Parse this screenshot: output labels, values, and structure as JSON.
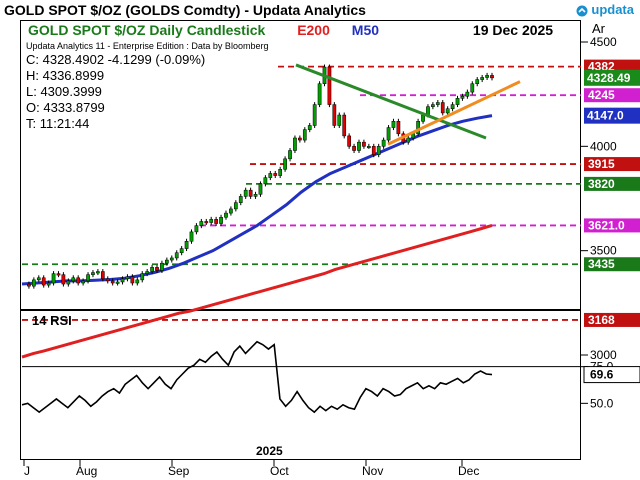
{
  "window": {
    "title": "GOLD SPOT $/OZ (GOLDS Comdty) -   Updata Analytics",
    "brand": "updata"
  },
  "chart_header": {
    "subtitle": "GOLD SPOT $/OZ Daily Candlestick",
    "ema_label": "E200",
    "ma_label": "M50",
    "date": "19 Dec 2025",
    "right_label": "Ar"
  },
  "ohlc": {
    "edition": "Updata Analytics 11 - Enterprise Edition : Data by Bloomberg",
    "close": "C: 4328.4902  -4.1299 (-0.09%)",
    "high": "H: 4336.8999",
    "low": "L: 4309.3999",
    "open": "O: 4333.8799",
    "time": "T: 11:21:44"
  },
  "rsi": {
    "title": "14 RSI",
    "current": "69.6"
  },
  "colors": {
    "candle_up": "#00a000",
    "candle_down": "#e00000",
    "ema200": "#e02020",
    "ma50": "#2030c0",
    "downtrend": "#2a8a2a",
    "uptrend": "#f08c20",
    "magenta": "#d020d0",
    "dark_green": "#1a7a1a",
    "dark_red": "#c01010"
  },
  "chart_data": {
    "type": "line",
    "title": "GOLD SPOT $/OZ Daily Candlestick",
    "xlabel": "2025",
    "x_ticks": [
      "J",
      "Aug",
      "Sep",
      "Oct",
      "Nov",
      "Dec"
    ],
    "ylim": [
      2950,
      4500
    ],
    "y_ticks": [
      3000,
      3500,
      4000,
      4500
    ],
    "price_path": [
      3340,
      3330,
      3360,
      3370,
      3335,
      3345,
      3390,
      3385,
      3340,
      3355,
      3370,
      3345,
      3355,
      3385,
      3395,
      3400,
      3365,
      3355,
      3345,
      3350,
      3365,
      3375,
      3345,
      3360,
      3390,
      3400,
      3420,
      3405,
      3440,
      3455,
      3465,
      3490,
      3510,
      3545,
      3590,
      3620,
      3640,
      3635,
      3650,
      3630,
      3660,
      3680,
      3700,
      3730,
      3760,
      3790,
      3760,
      3770,
      3820,
      3850,
      3870,
      3860,
      3890,
      3940,
      3980,
      4040,
      4030,
      4080,
      4100,
      4200,
      4300,
      4380,
      4200,
      4100,
      4150,
      4050,
      4000,
      3980,
      4020,
      4000,
      4000,
      3960,
      4000,
      4030,
      4090,
      4120,
      4060,
      4020,
      4040,
      4060,
      4120,
      4150,
      4190,
      4200,
      4210,
      4160,
      4180,
      4200,
      4230,
      4240,
      4260,
      4300,
      4320,
      4330,
      4340,
      4328
    ],
    "ema200_path": [
      2990,
      3007,
      3020,
      3035,
      3050,
      3065,
      3080,
      3095,
      3110,
      3125,
      3140,
      3155,
      3170,
      3185,
      3200,
      3210,
      3225,
      3240,
      3255,
      3270,
      3285,
      3300,
      3315,
      3330,
      3345,
      3360,
      3375,
      3390,
      3410,
      3425,
      3440,
      3455,
      3470,
      3485,
      3500,
      3515,
      3530,
      3545,
      3560,
      3575,
      3590,
      3605,
      3621
    ],
    "ma50_path": [
      3340,
      3345,
      3350,
      3355,
      3355,
      3358,
      3362,
      3368,
      3380,
      3395,
      3415,
      3440,
      3470,
      3500,
      3540,
      3580,
      3620,
      3670,
      3720,
      3780,
      3830,
      3870,
      3900,
      3930,
      3960,
      3990,
      4020,
      4050,
      4075,
      4100,
      4120,
      4135,
      4147
    ],
    "series": [
      {
        "name": "E200",
        "values": [
          3621.0
        ]
      },
      {
        "name": "M50",
        "values": [
          4147.0
        ]
      }
    ],
    "levels": [
      {
        "label": "4382",
        "value": 4382,
        "color": "#c01010"
      },
      {
        "label": "4245",
        "value": 4245,
        "color": "#d020d0"
      },
      {
        "label": "3915",
        "value": 3915,
        "color": "#c01010"
      },
      {
        "label": "3820",
        "value": 3820,
        "color": "#1a7a1a"
      },
      {
        "label": "3621.0",
        "value": 3621,
        "color": "#d020d0"
      },
      {
        "label": "3435",
        "value": 3435,
        "color": "#1a7a1a"
      },
      {
        "label": "3168",
        "value": 3168,
        "color": "#c01010"
      }
    ],
    "last_price_tag": "4328.49",
    "ma50_tag": "4147.0",
    "rsi_ylim": [
      25,
      100
    ],
    "rsi_ticks": [
      50,
      75
    ],
    "rsi_path": [
      49,
      50,
      47,
      44,
      47,
      50,
      53,
      50,
      47,
      51,
      55,
      52,
      48,
      51,
      55,
      58,
      60,
      57,
      63,
      66,
      69,
      64,
      60,
      64,
      68,
      63,
      60,
      66,
      70,
      74,
      76,
      80,
      78,
      82,
      85,
      80,
      76,
      85,
      89,
      84,
      88,
      92,
      90,
      87,
      90,
      53,
      48,
      52,
      58,
      52,
      47,
      44,
      48,
      45,
      48,
      46,
      49,
      47,
      46,
      54,
      60,
      58,
      55,
      60,
      58,
      55,
      56,
      60,
      62,
      64,
      60,
      62,
      60,
      64,
      63,
      65,
      67,
      64,
      66,
      70,
      72,
      70,
      69.6
    ]
  }
}
